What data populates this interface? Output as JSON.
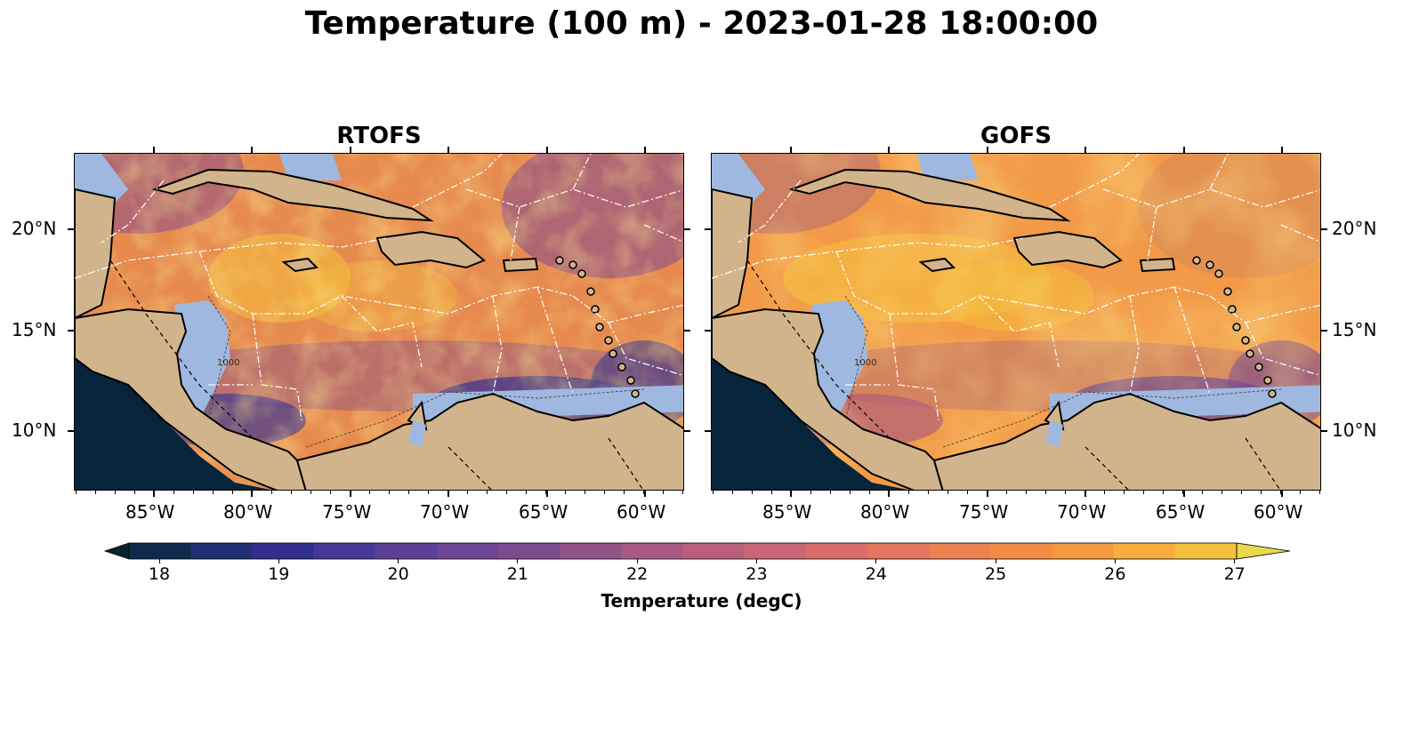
{
  "title": "Temperature (100 m) - 2023-01-28 18:00:00",
  "panels": [
    {
      "name": "RTOFS"
    },
    {
      "name": "GOFS"
    }
  ],
  "lon_ticks": [
    "85°W",
    "80°W",
    "75°W",
    "70°W",
    "65°W",
    "60°W"
  ],
  "lat_ticks": [
    "20°N",
    "15°N",
    "10°N"
  ],
  "colorbar": {
    "label": "Temperature (degC)",
    "ticks": [
      "18",
      "19",
      "20",
      "21",
      "22",
      "23",
      "24",
      "25",
      "26",
      "27"
    ],
    "min": 18,
    "max": 27,
    "step": 0.5,
    "extend": "both"
  },
  "contour_labels": [
    "1000"
  ],
  "colors": {
    "land": "#d2b48c",
    "shelf": "#9fb8e0",
    "pacific": "#06243a"
  }
}
